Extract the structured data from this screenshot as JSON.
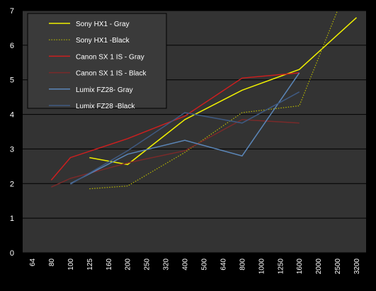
{
  "chart_data": {
    "type": "line",
    "title": "",
    "xlabel": "",
    "ylabel": "",
    "categories": [
      "64",
      "80",
      "100",
      "125",
      "160",
      "200",
      "250",
      "320",
      "400",
      "500",
      "640",
      "800",
      "1000",
      "1250",
      "1600",
      "2000",
      "2500",
      "3200"
    ],
    "ylim": [
      0,
      7
    ],
    "yticks": [
      0,
      1,
      2,
      3,
      4,
      5,
      6,
      7
    ],
    "grid": true,
    "legend_position": "top-left",
    "colors": {
      "background": "#000000",
      "plot_area": "#333333",
      "gridline": "#000000",
      "legend_bg": "#3a3a3a"
    },
    "series": [
      {
        "name": "Sony HX1 - Gray",
        "color": "#f0f000",
        "style": "solid",
        "values": [
          null,
          null,
          null,
          2.75,
          null,
          2.55,
          null,
          null,
          3.85,
          null,
          null,
          4.7,
          null,
          null,
          5.3,
          null,
          null,
          6.8
        ]
      },
      {
        "name": "Sony HX1 -Black",
        "color": "#b8b800",
        "style": "dotted",
        "values": [
          null,
          null,
          null,
          1.85,
          null,
          1.93,
          null,
          null,
          2.9,
          null,
          null,
          4.05,
          null,
          null,
          4.25,
          null,
          7.0,
          null
        ]
      },
      {
        "name": "Canon SX 1 IS - Gray",
        "color": "#cc1f1f",
        "style": "solid",
        "values": [
          null,
          2.1,
          2.75,
          null,
          null,
          3.3,
          null,
          null,
          3.95,
          null,
          null,
          5.05,
          null,
          null,
          5.2,
          null,
          null,
          null
        ]
      },
      {
        "name": "Canon SX 1 IS - Black",
        "color": "#7a2a2a",
        "style": "solid",
        "values": [
          null,
          1.9,
          2.15,
          null,
          null,
          2.6,
          null,
          null,
          2.95,
          null,
          null,
          3.85,
          null,
          null,
          3.75,
          null,
          null,
          null
        ]
      },
      {
        "name": "Lumix FZ28- Gray",
        "color": "#5b86b8",
        "style": "solid",
        "values": [
          null,
          null,
          2.0,
          null,
          null,
          2.85,
          null,
          null,
          3.25,
          null,
          null,
          2.8,
          null,
          null,
          5.2,
          null,
          null,
          null
        ]
      },
      {
        "name": "Lumix FZ28 -Black",
        "color": "#3f5a82",
        "style": "solid",
        "values": [
          null,
          null,
          1.98,
          null,
          null,
          2.95,
          null,
          null,
          4.05,
          null,
          null,
          3.75,
          null,
          null,
          4.65,
          null,
          null,
          null
        ]
      }
    ]
  }
}
